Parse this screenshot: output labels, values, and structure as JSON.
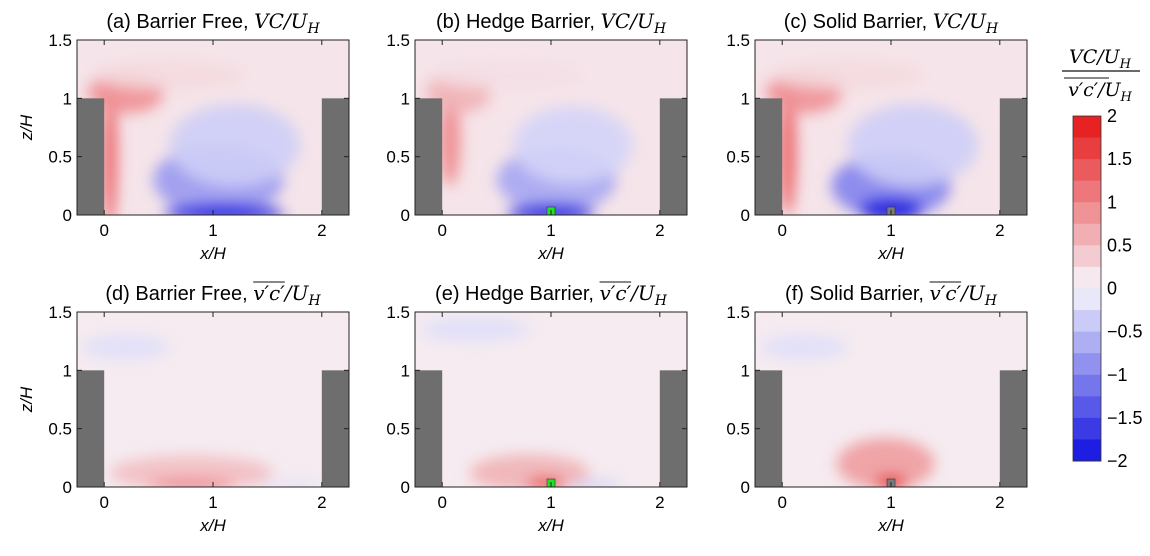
{
  "colors": {
    "positive_max": "#e61414",
    "negative_max": "#1010e0",
    "zero": "#f6f6fc",
    "building": "#6e6e6e",
    "hedge": "#22e022",
    "solid_barrier": "#7a7a7a"
  },
  "colorbar": {
    "label_top": "VC/U",
    "label_top_sub": "H",
    "label_bottom": "v′c′/U",
    "label_bottom_sub": "H",
    "ticks": [
      "2",
      "1.5",
      "1",
      "0.5",
      "0",
      "−0.5",
      "−1",
      "−1.5",
      "−2"
    ],
    "range": [
      -2,
      2
    ]
  },
  "chart_data": [
    {
      "id": "a",
      "type": "heatmap",
      "title_prefix": "(a) Barrier Free, ",
      "title_math": "VC/U",
      "title_sub": "H",
      "xlabel": "x/H",
      "ylabel": "z/H",
      "xticks": [
        "0",
        "1",
        "2"
      ],
      "yticks": [
        "0",
        "0.5",
        "1",
        "1.5"
      ],
      "xlim": [
        -0.25,
        2.25
      ],
      "ylim": [
        0,
        1.5
      ],
      "variable": "VC/U_H",
      "barrier": "none",
      "field": [
        {
          "x": 0.05,
          "z": 0.5,
          "rx": 0.07,
          "rz": 0.6,
          "v": 1.3
        },
        {
          "x": 0.2,
          "z": 1.05,
          "rx": 0.35,
          "rz": 0.18,
          "v": 0.9
        },
        {
          "x": 0.6,
          "z": 1.2,
          "rx": 0.7,
          "rz": 0.12,
          "v": 0.25
        },
        {
          "x": 1.05,
          "z": 0.3,
          "rx": 0.6,
          "rz": 0.3,
          "v": -0.8
        },
        {
          "x": 1.1,
          "z": 0.02,
          "rx": 0.55,
          "rz": 0.08,
          "v": -1.9
        },
        {
          "x": 1.2,
          "z": 0.6,
          "rx": 0.6,
          "rz": 0.35,
          "v": -0.35
        }
      ]
    },
    {
      "id": "b",
      "type": "heatmap",
      "title_prefix": "(b) Hedge Barrier, ",
      "title_math": "VC/U",
      "title_sub": "H",
      "xlabel": "x/H",
      "ylabel": "z/H",
      "xticks": [
        "0",
        "1",
        "2"
      ],
      "yticks": [
        "0",
        "0.5",
        "1",
        "1.5"
      ],
      "xlim": [
        -0.25,
        2.25
      ],
      "ylim": [
        0,
        1.5
      ],
      "variable": "VC/U_H",
      "barrier": "hedge",
      "field": [
        {
          "x": 0.07,
          "z": 0.65,
          "rx": 0.1,
          "rz": 0.4,
          "v": 0.95
        },
        {
          "x": 0.15,
          "z": 1.05,
          "rx": 0.3,
          "rz": 0.18,
          "v": 0.6
        },
        {
          "x": 0.6,
          "z": 1.2,
          "rx": 0.7,
          "rz": 0.12,
          "v": 0.2
        },
        {
          "x": 1.05,
          "z": 0.3,
          "rx": 0.55,
          "rz": 0.28,
          "v": -0.7
        },
        {
          "x": 1.0,
          "z": 0.02,
          "rx": 0.4,
          "rz": 0.08,
          "v": -1.9
        },
        {
          "x": 1.2,
          "z": 0.6,
          "rx": 0.55,
          "rz": 0.33,
          "v": -0.3
        }
      ]
    },
    {
      "id": "c",
      "type": "heatmap",
      "title_prefix": "(c) Solid Barrier, ",
      "title_math": "VC/U",
      "title_sub": "H",
      "xlabel": "x/H",
      "ylabel": "z/H",
      "xticks": [
        "0",
        "1",
        "2"
      ],
      "yticks": [
        "0",
        "0.5",
        "1",
        "1.5"
      ],
      "xlim": [
        -0.25,
        2.25
      ],
      "ylim": [
        0,
        1.5
      ],
      "variable": "VC/U_H",
      "barrier": "solid",
      "field": [
        {
          "x": 0.05,
          "z": 0.55,
          "rx": 0.08,
          "rz": 0.55,
          "v": 1.3
        },
        {
          "x": 0.2,
          "z": 1.05,
          "rx": 0.35,
          "rz": 0.18,
          "v": 0.9
        },
        {
          "x": 0.6,
          "z": 1.2,
          "rx": 0.7,
          "rz": 0.12,
          "v": 0.25
        },
        {
          "x": 1.0,
          "z": 0.25,
          "rx": 0.55,
          "rz": 0.28,
          "v": -1.0
        },
        {
          "x": 1.0,
          "z": 0.05,
          "rx": 0.3,
          "rz": 0.1,
          "v": -1.9
        },
        {
          "x": 1.2,
          "z": 0.6,
          "rx": 0.6,
          "rz": 0.35,
          "v": -0.35
        }
      ]
    },
    {
      "id": "d",
      "type": "heatmap",
      "title_prefix": "(d) Barrier Free, ",
      "title_math": "v′c′/U",
      "title_sub": "H",
      "xlabel": "x/H",
      "ylabel": "z/H",
      "xticks": [
        "0",
        "1",
        "2"
      ],
      "yticks": [
        "0",
        "0.5",
        "1",
        "1.5"
      ],
      "xlim": [
        -0.25,
        2.25
      ],
      "ylim": [
        0,
        1.5
      ],
      "variable": "v'c'/U_H",
      "barrier": "none",
      "field": [
        {
          "x": 0.2,
          "z": 1.2,
          "rx": 0.4,
          "rz": 0.1,
          "v": -0.2
        },
        {
          "x": 0.8,
          "z": 0.12,
          "rx": 0.75,
          "rz": 0.15,
          "v": 0.5
        },
        {
          "x": 0.8,
          "z": 0.02,
          "rx": 0.4,
          "rz": 0.04,
          "v": 1.2
        },
        {
          "x": 1.7,
          "z": 0.02,
          "rx": 0.3,
          "rz": 0.03,
          "v": -0.2
        }
      ]
    },
    {
      "id": "e",
      "type": "heatmap",
      "title_prefix": "(e) Hedge Barrier, ",
      "title_math": "v′c′/U",
      "title_sub": "H",
      "xlabel": "x/H",
      "ylabel": "z/H",
      "xticks": [
        "0",
        "1",
        "2"
      ],
      "yticks": [
        "0",
        "0.5",
        "1",
        "1.5"
      ],
      "xlim": [
        -0.25,
        2.25
      ],
      "ylim": [
        0,
        1.5
      ],
      "variable": "v'c'/U_H",
      "barrier": "hedge",
      "field": [
        {
          "x": 0.3,
          "z": 1.35,
          "rx": 0.5,
          "rz": 0.1,
          "v": -0.2
        },
        {
          "x": 0.8,
          "z": 0.12,
          "rx": 0.55,
          "rz": 0.16,
          "v": 0.6
        },
        {
          "x": 0.95,
          "z": 0.03,
          "rx": 0.18,
          "rz": 0.05,
          "v": 1.7
        },
        {
          "x": 1.4,
          "z": 0.02,
          "rx": 0.25,
          "rz": 0.03,
          "v": -0.4
        }
      ]
    },
    {
      "id": "f",
      "type": "heatmap",
      "title_prefix": "(f) Solid Barrier, ",
      "title_math": "v′c′/U",
      "title_sub": "H",
      "xlabel": "x/H",
      "ylabel": "z/H",
      "xticks": [
        "0",
        "1",
        "2"
      ],
      "yticks": [
        "0",
        "0.5",
        "1",
        "1.5"
      ],
      "xlim": [
        -0.25,
        2.25
      ],
      "ylim": [
        0,
        1.5
      ],
      "variable": "v'c'/U_H",
      "barrier": "solid",
      "field": [
        {
          "x": 0.2,
          "z": 1.2,
          "rx": 0.4,
          "rz": 0.1,
          "v": -0.2
        },
        {
          "x": 0.95,
          "z": 0.2,
          "rx": 0.45,
          "rz": 0.22,
          "v": 0.8
        },
        {
          "x": 1.0,
          "z": 0.04,
          "rx": 0.15,
          "rz": 0.06,
          "v": 1.9
        }
      ]
    }
  ]
}
